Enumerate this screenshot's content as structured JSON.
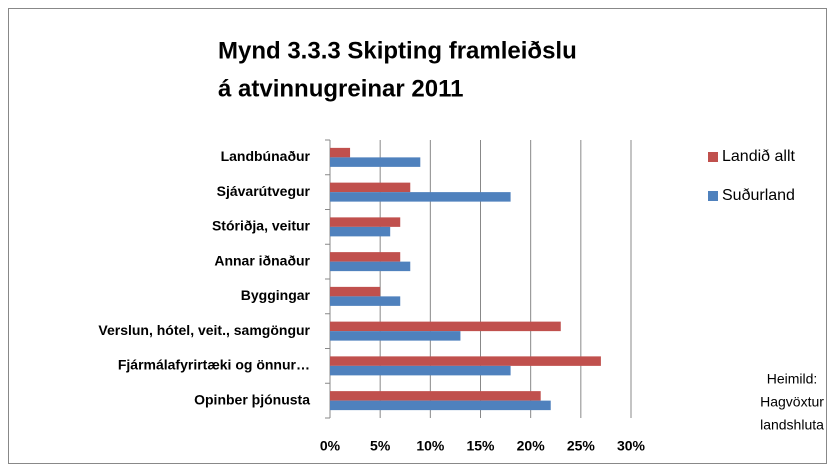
{
  "chart_data": {
    "type": "bar",
    "orientation": "horizontal",
    "title": [
      "Mynd 3.3.3 Skipting framleiðslu",
      "á atvinnugreinar 2011"
    ],
    "categories": [
      "Landbúnaður",
      "Sjávarútvegur",
      "Stóriðja, veitur",
      "Annar iðnaður",
      "Byggingar",
      "Verslun, hótel, veit., samgöngur",
      "Fjármálafyrirtæki og önnur…",
      "Opinber þjónusta"
    ],
    "series": [
      {
        "name": "Landið allt",
        "color": "#c0504d",
        "values": [
          2,
          8,
          7,
          7,
          5,
          23,
          27,
          21
        ]
      },
      {
        "name": "Suðurland",
        "color": "#4f81bd",
        "values": [
          9,
          18,
          6,
          8,
          7,
          13,
          18,
          22
        ]
      }
    ],
    "xlim": [
      0,
      30
    ],
    "xticks": [
      {
        "value": 0,
        "label": "0%"
      },
      {
        "value": 5,
        "label": "5%"
      },
      {
        "value": 10,
        "label": "10%"
      },
      {
        "value": 15,
        "label": "15%"
      },
      {
        "value": 20,
        "label": "20%"
      },
      {
        "value": 25,
        "label": "25%"
      },
      {
        "value": 30,
        "label": "30%"
      }
    ],
    "grid": true,
    "legend": "right",
    "annotation": [
      "Heimild:",
      "Hagvöxtur",
      "landshluta"
    ]
  }
}
